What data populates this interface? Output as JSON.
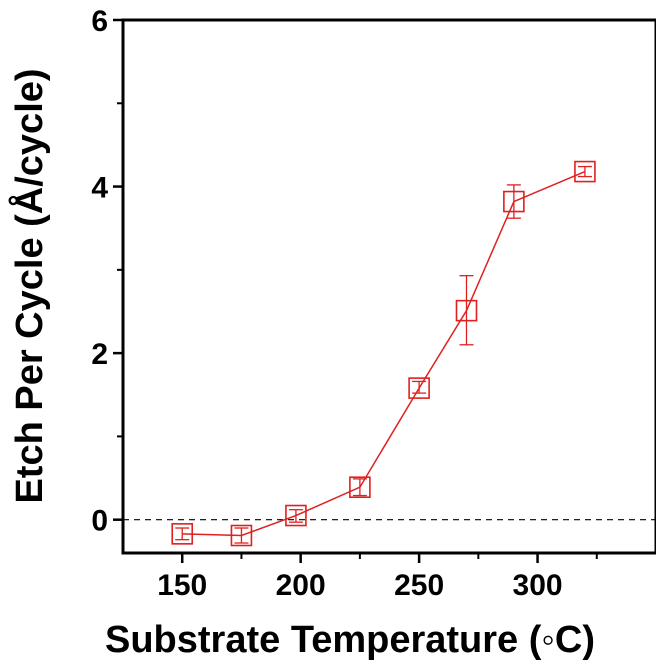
{
  "chart_data": {
    "type": "line",
    "title": "",
    "xlabel": "Substrate Temperature (◦C)",
    "ylabel": "Etch Per Cycle (Å/cycle)",
    "xlim": [
      125,
      350
    ],
    "ylim": [
      -0.4,
      6
    ],
    "x_ticks": [
      150,
      200,
      250,
      300
    ],
    "x_tick_labels": [
      "150",
      "200",
      "250",
      "300"
    ],
    "y_ticks": [
      0,
      2,
      4,
      6
    ],
    "y_tick_labels": [
      "0",
      "2",
      "4",
      "6"
    ],
    "grid": false,
    "legend": "none",
    "reference_line": {
      "y": 0,
      "style": "dashed"
    },
    "series": [
      {
        "marker": "open-square",
        "color": "#e0201e",
        "x": [
          150,
          175,
          198,
          225,
          250,
          270,
          290,
          320
        ],
        "y": [
          -0.17,
          -0.19,
          0.05,
          0.39,
          1.58,
          2.51,
          3.82,
          4.18
        ],
        "err_low": [
          -0.24,
          -0.28,
          -0.03,
          0.29,
          1.52,
          2.1,
          3.62,
          4.12
        ],
        "err_high": [
          -0.1,
          -0.1,
          0.12,
          0.49,
          1.66,
          2.93,
          4.02,
          4.24
        ]
      }
    ]
  }
}
